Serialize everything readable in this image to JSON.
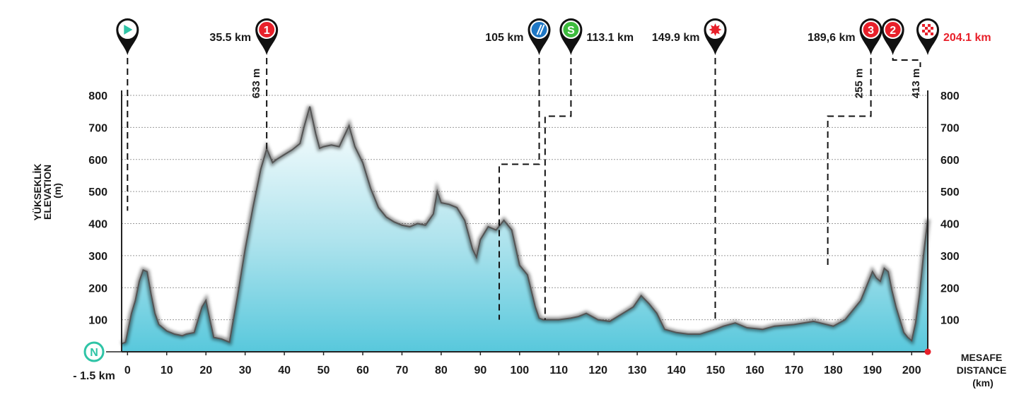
{
  "chart_data": {
    "type": "area",
    "ylabel_lines": [
      "YÜKSEKLİK",
      "ELEVATION",
      "(m)"
    ],
    "xlabel_lines": [
      "MESAFE",
      "DISTANCE",
      "(km)"
    ],
    "xlim": [
      -1.5,
      204.1
    ],
    "ylim": [
      0,
      800
    ],
    "x_ticks": [
      0,
      10,
      20,
      30,
      40,
      50,
      60,
      70,
      80,
      90,
      100,
      110,
      120,
      130,
      140,
      150,
      160,
      170,
      180,
      190,
      200
    ],
    "y_ticks_left": [
      100,
      200,
      300,
      400,
      500,
      600,
      700,
      800
    ],
    "y_ticks_right": [
      100,
      200,
      300,
      400,
      500,
      600,
      700,
      800
    ],
    "start_label": "- 1.5 km",
    "start_badge": "N",
    "grid": true,
    "colors": {
      "fill_top": "#ffffff",
      "fill_bottom": "#58c8dc",
      "line": "#555555",
      "red": "#e8202a",
      "blue": "#1f77c4",
      "green": "#3dbb3d",
      "teal": "#2ec4a6"
    },
    "profile": {
      "x": [
        -1.5,
        -0.5,
        0,
        1,
        2,
        3,
        4,
        5,
        6,
        7,
        8,
        10,
        12,
        14,
        15,
        17,
        18,
        19,
        20,
        21,
        22,
        24,
        26,
        27,
        28,
        30,
        32,
        34,
        35.5,
        37,
        38,
        40,
        42,
        44,
        45,
        46.5,
        48,
        49,
        50,
        52,
        54,
        56.5,
        58,
        60,
        62,
        64,
        66,
        68,
        70,
        72,
        74,
        76,
        78,
        79,
        80,
        82,
        84,
        86,
        88,
        89,
        90,
        92,
        94,
        96,
        98,
        100,
        102,
        104,
        105,
        106,
        108,
        110,
        113,
        115,
        117,
        120,
        123,
        125,
        127,
        129,
        131,
        133,
        135,
        137,
        140,
        143,
        146,
        149.9,
        152,
        155,
        158,
        162,
        165,
        170,
        175,
        180,
        183,
        185,
        187,
        189,
        190,
        191,
        192,
        193,
        194,
        195,
        196,
        197,
        198,
        199,
        200,
        201,
        202,
        203,
        204.1
      ],
      "y": [
        25,
        30,
        60,
        120,
        160,
        220,
        255,
        250,
        180,
        120,
        85,
        65,
        55,
        50,
        55,
        60,
        100,
        140,
        160,
        100,
        45,
        40,
        30,
        100,
        170,
        320,
        450,
        570,
        633,
        590,
        600,
        615,
        630,
        650,
        700,
        765,
        680,
        635,
        640,
        645,
        640,
        705,
        640,
        590,
        510,
        450,
        420,
        405,
        395,
        390,
        400,
        395,
        430,
        500,
        465,
        460,
        450,
        410,
        320,
        295,
        350,
        390,
        380,
        410,
        380,
        270,
        240,
        140,
        105,
        100,
        100,
        100,
        105,
        110,
        120,
        100,
        95,
        110,
        125,
        140,
        175,
        150,
        120,
        70,
        60,
        55,
        55,
        70,
        80,
        90,
        75,
        70,
        80,
        85,
        95,
        80,
        100,
        130,
        160,
        220,
        250,
        230,
        220,
        260,
        250,
        190,
        140,
        100,
        60,
        45,
        35,
        90,
        180,
        300,
        413
      ]
    },
    "markers": [
      {
        "x": 0,
        "label": "",
        "label_side": "none",
        "icon": "start-play-icon",
        "color": "#ffffff",
        "icon_color": "#2ec4a6",
        "line_end": 440
      },
      {
        "x": 35.5,
        "label": "35.5 km",
        "label_side": "left",
        "icon": "climb-1-icon",
        "color": "#e8202a",
        "text": "1",
        "elev_label": "633 m",
        "line_end": 633
      },
      {
        "x": 105,
        "label": "105 km",
        "label_side": "left",
        "icon": "feed-zone-icon",
        "color": "#1f77c4",
        "step_to": 94.8,
        "step_y": 585
      },
      {
        "x": 113.1,
        "label": "113.1 km",
        "label_side": "right",
        "icon": "sprint-icon",
        "color": "#3dbb3d",
        "text": "S",
        "step_to": 106.5,
        "step_y": 735
      },
      {
        "x": 149.9,
        "label": "149.9 km",
        "label_side": "left",
        "icon": "bonus-star-icon",
        "color": "#ffffff",
        "icon_color": "#e8202a",
        "line_end": 100
      },
      {
        "x": 189.6,
        "label": "189,6 km",
        "label_side": "left",
        "icon": "climb-3-icon",
        "color": "#e8202a",
        "text": "3",
        "elev_label": "255 m",
        "step_to": 178.6,
        "step_y": 735
      },
      {
        "x": 195.2,
        "label": "",
        "label_side": "none",
        "icon": "climb-2-icon",
        "color": "#e8202a",
        "text": "2",
        "step_to": 202.2,
        "step_y": 915
      },
      {
        "x": 204.1,
        "label": "204.1 km",
        "label_side": "right",
        "label_color": "#e8202a",
        "icon": "finish-flag-icon",
        "color": "#ffffff",
        "elev_label": "413 m"
      }
    ]
  }
}
